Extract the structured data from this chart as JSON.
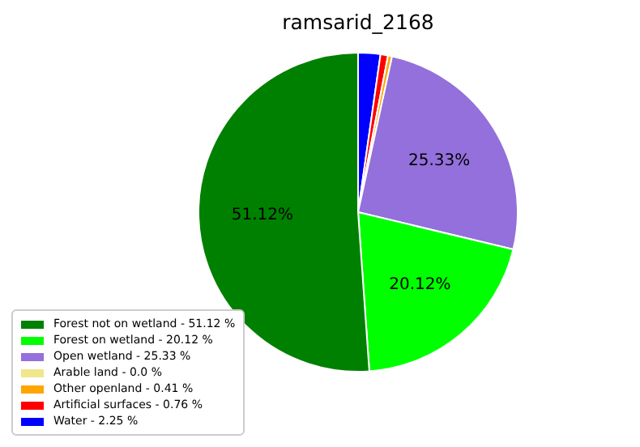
{
  "chart_data": {
    "type": "pie",
    "title": "ramsarid_2168",
    "categories": [
      "Forest not on wetland - 51.12 %",
      "Forest on wetland - 20.12 %",
      "Open wetland - 25.33 %",
      "Arable land - 0.0 %",
      "Other openland - 0.41 %",
      "Artificial surfaces - 0.76 %",
      "Water - 2.25 %"
    ],
    "values": [
      51.12,
      20.12,
      25.33,
      0.0,
      0.41,
      0.76,
      2.25
    ],
    "colors": [
      "#008000",
      "#00ff00",
      "#9370db",
      "#f0e68c",
      "#ffa500",
      "#ff0000",
      "#0000ff"
    ],
    "value_labels": [
      "51.12%",
      "20.12%",
      "25.33%",
      null,
      null,
      null,
      null
    ],
    "legend": "bottom left"
  }
}
